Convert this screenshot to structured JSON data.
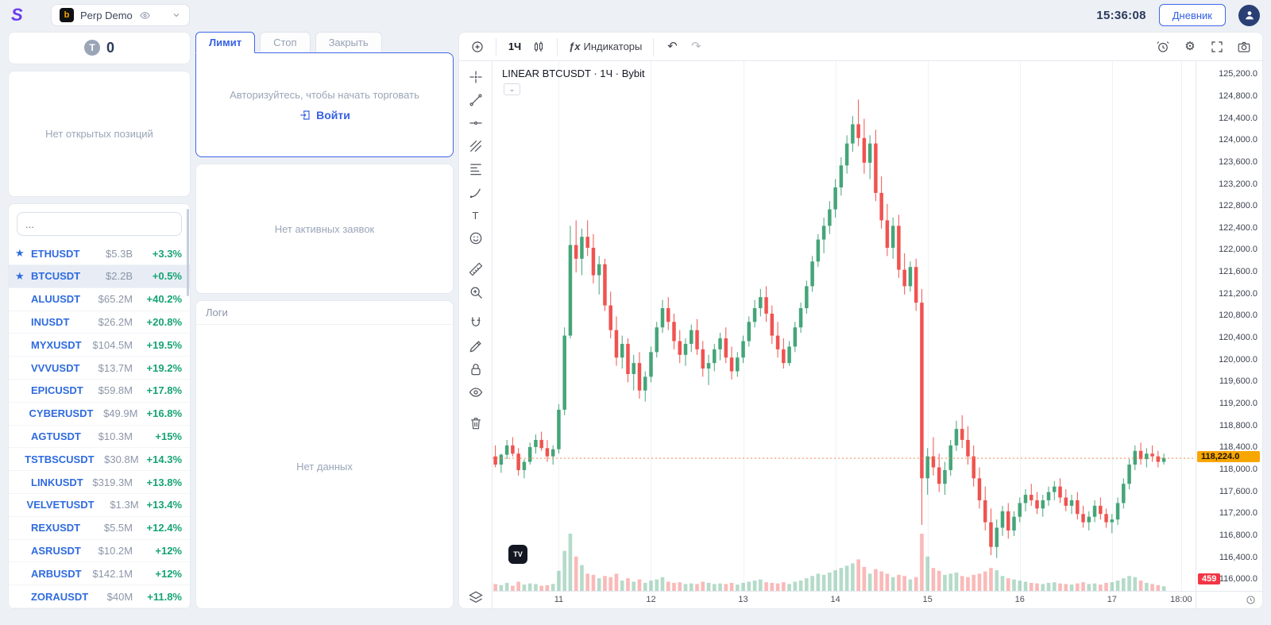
{
  "topbar": {
    "account_label": "Perp Demo",
    "time": "15:36:08",
    "journal_button": "Дневник"
  },
  "icons": {
    "logo": "S",
    "exchange_badge": "b",
    "star": "★",
    "undo": "↶",
    "redo": "↷",
    "fx": "ƒx",
    "gear": "⚙",
    "text_tool": "T",
    "tv": "TV",
    "dropdown_caret": "⌄"
  },
  "sidebar": {
    "counter_value": "0",
    "no_positions": "Нет открытых позиций",
    "search_placeholder": "...",
    "coins": [
      {
        "symbol": "ETHUSDT",
        "cap": "$5.3B",
        "change": "+3.3%",
        "fav": true
      },
      {
        "symbol": "BTCUSDT",
        "cap": "$2.2B",
        "change": "+0.5%",
        "fav": true,
        "selected": true
      },
      {
        "symbol": "ALUUSDT",
        "cap": "$65.2M",
        "change": "+40.2%"
      },
      {
        "symbol": "INUSDT",
        "cap": "$26.2M",
        "change": "+20.8%"
      },
      {
        "symbol": "MYXUSDT",
        "cap": "$104.5M",
        "change": "+19.5%"
      },
      {
        "symbol": "VVVUSDT",
        "cap": "$13.7M",
        "change": "+19.2%"
      },
      {
        "symbol": "EPICUSDT",
        "cap": "$59.8M",
        "change": "+17.8%"
      },
      {
        "symbol": "CYBERUSDT",
        "cap": "$49.9M",
        "change": "+16.8%"
      },
      {
        "symbol": "AGTUSDT",
        "cap": "$10.3M",
        "change": "+15%"
      },
      {
        "symbol": "TSTBSCUSDT",
        "cap": "$30.8M",
        "change": "+14.3%"
      },
      {
        "symbol": "LINKUSDT",
        "cap": "$319.3M",
        "change": "+13.8%"
      },
      {
        "symbol": "VELVETUSDT",
        "cap": "$1.3M",
        "change": "+13.4%"
      },
      {
        "symbol": "REXUSDT",
        "cap": "$5.5M",
        "change": "+12.4%"
      },
      {
        "symbol": "ASRUSDT",
        "cap": "$10.2M",
        "change": "+12%"
      },
      {
        "symbol": "ARBUSDT",
        "cap": "$142.1M",
        "change": "+12%"
      },
      {
        "symbol": "ZORAUSDT",
        "cap": "$40M",
        "change": "+11.8%"
      }
    ]
  },
  "orders": {
    "tabs": [
      "Лимит",
      "Стоп",
      "Закрыть"
    ],
    "active_tab": "Лимит",
    "auth_message": "Авторизуйтесь, чтобы начать торговать",
    "login_label": "Войти",
    "no_active_orders": "Нет активных заявок",
    "logs_title": "Логи",
    "no_data": "Нет данных"
  },
  "chart": {
    "toolbar": {
      "timeframe": "1Ч",
      "indicators_label": "Индикаторы"
    },
    "title": "LINEAR BTCUSDT · 1Ч · Bybit",
    "last_price_label": "118,224.0",
    "countdown_label": "459"
  },
  "chart_data": {
    "type": "candlestick",
    "symbol": "BTCUSDT",
    "interval": "1Ч",
    "exchange": "Bybit",
    "title": "LINEAR BTCUSDT · 1Ч · Bybit",
    "last_price": 118224.0,
    "countdown_anchor": 116000,
    "slots": 122,
    "y_axis": {
      "min": 115800,
      "max": 125450,
      "tick_step": 400
    },
    "y_ticks": [
      125200,
      124800,
      124400,
      124000,
      123600,
      123200,
      122800,
      122400,
      122000,
      121600,
      121200,
      120800,
      120400,
      120000,
      119600,
      119200,
      118800,
      118400,
      118000,
      117600,
      117200,
      116800,
      116400,
      116000
    ],
    "x_ticks": [
      {
        "i": 11,
        "label": "11"
      },
      {
        "i": 27,
        "label": "12"
      },
      {
        "i": 43,
        "label": "13"
      },
      {
        "i": 59,
        "label": "14"
      },
      {
        "i": 75,
        "label": "15"
      },
      {
        "i": 91,
        "label": "16"
      },
      {
        "i": 107,
        "label": "17"
      },
      {
        "i": 119,
        "label": "18:00"
      }
    ],
    "colors": {
      "up": "#45a579",
      "down": "#ef5350",
      "volume_up": "rgba(69,165,121,0.4)",
      "volume_down": "rgba(239,83,80,0.4)",
      "grid": "#eef1f7",
      "last_price_line": "#f0864a"
    },
    "candles": [
      [
        118250,
        118450,
        118050,
        118100,
        12
      ],
      [
        118100,
        118300,
        117950,
        118280,
        10
      ],
      [
        118280,
        118550,
        118200,
        118450,
        14
      ],
      [
        118450,
        118600,
        118250,
        118300,
        9
      ],
      [
        118300,
        118400,
        117900,
        118000,
        16
      ],
      [
        118000,
        118200,
        117850,
        118150,
        11
      ],
      [
        118150,
        118500,
        118100,
        118420,
        13
      ],
      [
        118420,
        118650,
        118300,
        118550,
        12
      ],
      [
        118550,
        118700,
        118350,
        118400,
        9
      ],
      [
        118400,
        118550,
        118150,
        118250,
        10
      ],
      [
        118250,
        118450,
        118100,
        118380,
        12
      ],
      [
        118380,
        119200,
        118300,
        119100,
        35
      ],
      [
        119100,
        120600,
        119000,
        120450,
        70
      ],
      [
        120450,
        122450,
        120400,
        122100,
        100
      ],
      [
        122100,
        122550,
        121600,
        121850,
        60
      ],
      [
        121850,
        122400,
        121550,
        122250,
        45
      ],
      [
        122250,
        122550,
        121900,
        122050,
        30
      ],
      [
        122050,
        122300,
        121400,
        121550,
        28
      ],
      [
        121550,
        121900,
        121200,
        121750,
        22
      ],
      [
        121750,
        121850,
        120900,
        121000,
        26
      ],
      [
        121000,
        121250,
        120400,
        120550,
        24
      ],
      [
        120550,
        120800,
        119900,
        120050,
        30
      ],
      [
        120050,
        120450,
        119850,
        120300,
        18
      ],
      [
        120300,
        120400,
        119600,
        119750,
        22
      ],
      [
        119750,
        120100,
        119450,
        119950,
        16
      ],
      [
        119950,
        120150,
        119300,
        119450,
        20
      ],
      [
        119450,
        119800,
        119250,
        119700,
        14
      ],
      [
        119700,
        120250,
        119600,
        120150,
        18
      ],
      [
        120150,
        120700,
        120050,
        120600,
        20
      ],
      [
        120600,
        121100,
        120500,
        120950,
        24
      ],
      [
        120950,
        121150,
        120550,
        120700,
        16
      ],
      [
        120700,
        120850,
        120200,
        120350,
        14
      ],
      [
        120350,
        120550,
        119950,
        120100,
        15
      ],
      [
        120100,
        120400,
        119900,
        120300,
        12
      ],
      [
        120300,
        120650,
        120150,
        120550,
        13
      ],
      [
        120550,
        120750,
        120100,
        120200,
        12
      ],
      [
        120200,
        120350,
        119700,
        119850,
        16
      ],
      [
        119850,
        120100,
        119550,
        119950,
        14
      ],
      [
        119950,
        120300,
        119800,
        120200,
        12
      ],
      [
        120200,
        120500,
        120000,
        120400,
        13
      ],
      [
        120400,
        120600,
        119950,
        120050,
        12
      ],
      [
        120050,
        120250,
        119650,
        119800,
        14
      ],
      [
        119800,
        120150,
        119700,
        120050,
        11
      ],
      [
        120050,
        120450,
        119950,
        120350,
        14
      ],
      [
        120350,
        120800,
        120250,
        120700,
        16
      ],
      [
        120700,
        121100,
        120600,
        120950,
        18
      ],
      [
        120950,
        121300,
        120800,
        121150,
        20
      ],
      [
        121150,
        121350,
        120700,
        120850,
        15
      ],
      [
        120850,
        121000,
        120300,
        120450,
        14
      ],
      [
        120450,
        120700,
        120050,
        120200,
        13
      ],
      [
        120200,
        120400,
        119850,
        119950,
        15
      ],
      [
        119950,
        120350,
        119900,
        120250,
        12
      ],
      [
        120250,
        120700,
        120150,
        120600,
        16
      ],
      [
        120600,
        121050,
        120500,
        120950,
        18
      ],
      [
        120950,
        121450,
        120850,
        121350,
        22
      ],
      [
        121350,
        121900,
        121250,
        121800,
        26
      ],
      [
        121800,
        122300,
        121700,
        122200,
        30
      ],
      [
        122200,
        122600,
        121950,
        122450,
        28
      ],
      [
        122450,
        122900,
        122300,
        122750,
        32
      ],
      [
        122750,
        123300,
        122600,
        123150,
        36
      ],
      [
        123150,
        123700,
        123000,
        123550,
        40
      ],
      [
        123550,
        124100,
        123400,
        123950,
        44
      ],
      [
        123950,
        124450,
        123800,
        124300,
        48
      ],
      [
        124300,
        124750,
        123900,
        124050,
        55
      ],
      [
        124050,
        124400,
        123400,
        123600,
        42
      ],
      [
        123600,
        124100,
        123300,
        123950,
        30
      ],
      [
        123950,
        124200,
        122900,
        123050,
        38
      ],
      [
        123050,
        123350,
        122400,
        122550,
        34
      ],
      [
        122550,
        122850,
        121900,
        122050,
        30
      ],
      [
        122050,
        122600,
        121850,
        122450,
        24
      ],
      [
        122450,
        122650,
        121500,
        121650,
        28
      ],
      [
        121650,
        121950,
        121200,
        121350,
        26
      ],
      [
        121350,
        121800,
        121250,
        121700,
        20
      ],
      [
        121700,
        121850,
        120900,
        121050,
        24
      ],
      [
        121050,
        121300,
        117000,
        117850,
        100
      ],
      [
        117850,
        118400,
        117550,
        118250,
        60
      ],
      [
        118250,
        118600,
        117900,
        118050,
        40
      ],
      [
        118050,
        118300,
        117600,
        117750,
        35
      ],
      [
        117750,
        118150,
        117550,
        118000,
        28
      ],
      [
        118000,
        118550,
        117900,
        118450,
        30
      ],
      [
        118450,
        118900,
        118350,
        118750,
        32
      ],
      [
        118750,
        119000,
        118400,
        118550,
        26
      ],
      [
        118550,
        118800,
        118100,
        118250,
        24
      ],
      [
        118250,
        118450,
        117700,
        117850,
        28
      ],
      [
        117850,
        118050,
        117300,
        117450,
        30
      ],
      [
        117450,
        117700,
        116900,
        117050,
        34
      ],
      [
        117050,
        117300,
        116450,
        116600,
        40
      ],
      [
        116600,
        117100,
        116400,
        116950,
        36
      ],
      [
        116950,
        117350,
        116800,
        117250,
        26
      ],
      [
        117250,
        117400,
        116750,
        116900,
        22
      ],
      [
        116900,
        117250,
        116800,
        117150,
        20
      ],
      [
        117150,
        117500,
        117050,
        117400,
        18
      ],
      [
        117400,
        117650,
        117250,
        117550,
        16
      ],
      [
        117550,
        117750,
        117350,
        117450,
        14
      ],
      [
        117450,
        117600,
        117200,
        117300,
        13
      ],
      [
        117300,
        117550,
        117150,
        117450,
        12
      ],
      [
        117450,
        117700,
        117350,
        117600,
        14
      ],
      [
        117600,
        117800,
        117450,
        117700,
        15
      ],
      [
        117700,
        117850,
        117400,
        117500,
        13
      ],
      [
        117500,
        117650,
        117250,
        117350,
        12
      ],
      [
        117350,
        117550,
        117200,
        117450,
        11
      ],
      [
        117450,
        117600,
        117100,
        117200,
        13
      ],
      [
        117200,
        117350,
        116950,
        117050,
        15
      ],
      [
        117050,
        117250,
        116900,
        117150,
        12
      ],
      [
        117150,
        117450,
        117050,
        117350,
        13
      ],
      [
        117350,
        117500,
        117100,
        117200,
        11
      ],
      [
        117200,
        117300,
        116950,
        117050,
        14
      ],
      [
        117050,
        117200,
        116850,
        117100,
        15
      ],
      [
        117100,
        117500,
        117000,
        117400,
        18
      ],
      [
        117400,
        117850,
        117300,
        117750,
        22
      ],
      [
        117750,
        118200,
        117650,
        118100,
        26
      ],
      [
        118100,
        118450,
        118000,
        118350,
        24
      ],
      [
        118350,
        118500,
        118100,
        118200,
        18
      ],
      [
        118200,
        118400,
        118050,
        118300,
        14
      ],
      [
        118300,
        118450,
        118150,
        118250,
        12
      ],
      [
        118250,
        118350,
        118050,
        118150,
        10
      ],
      [
        118150,
        118300,
        118100,
        118224,
        8
      ]
    ]
  }
}
